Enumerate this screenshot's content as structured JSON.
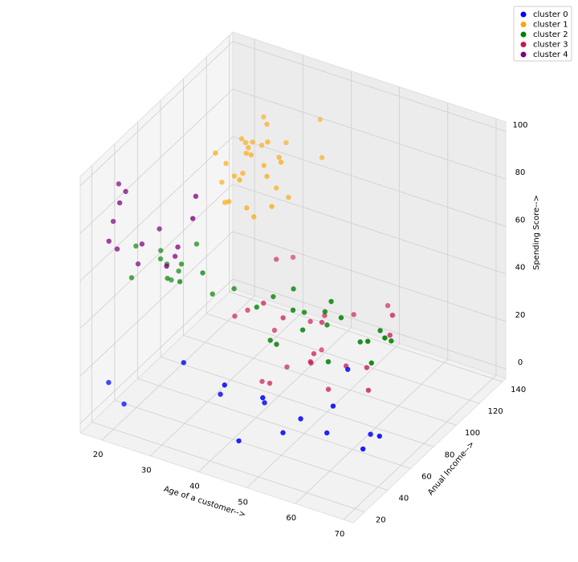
{
  "chart_data": {
    "type": "scatter3d",
    "xlabel": "Age of a customer-->",
    "ylabel": "Anual Income-->",
    "zlabel": "Spending Score-->",
    "xlim": [
      15.5,
      72
    ],
    "ylim": [
      10,
      143
    ],
    "zlim": [
      -4,
      104
    ],
    "xticks": [
      20,
      30,
      40,
      50,
      60,
      70
    ],
    "yticks": [
      20,
      40,
      60,
      80,
      100,
      120,
      140
    ],
    "zticks": [
      0,
      20,
      40,
      60,
      80,
      100
    ],
    "grid": true,
    "legend": "upper right",
    "series": [
      {
        "name": "cluster 0",
        "color": "#0000ff",
        "x": [
          19,
          21,
          35,
          45,
          40,
          52,
          47,
          60,
          58,
          65,
          67,
          49,
          43,
          54,
          59,
          63
        ],
        "y": [
          20,
          25,
          18,
          24,
          29,
          33,
          38,
          43,
          46,
          48,
          54,
          28,
          20,
          40,
          60,
          63
        ],
        "z": [
          15,
          5,
          35,
          6,
          20,
          10,
          17,
          22,
          8,
          5,
          9,
          25,
          30,
          14,
          29,
          3
        ]
      },
      {
        "name": "cluster 1",
        "color": "#ffa500",
        "x": [
          32,
          29,
          35,
          36,
          30,
          33,
          38,
          31,
          34,
          27,
          39,
          32,
          35,
          30,
          36,
          28,
          33,
          37,
          31,
          34,
          29,
          32,
          38,
          35,
          30,
          33,
          36,
          31,
          34,
          39
        ],
        "y": [
          70,
          71,
          73,
          75,
          76,
          78,
          78,
          79,
          81,
          85,
          86,
          87,
          88,
          93,
          97,
          98,
          99,
          101,
          103,
          103,
          113,
          120,
          126,
          137,
          75,
          81,
          87,
          95,
          71,
          78
        ],
        "z": [
          77,
          95,
          75,
          71,
          89,
          86,
          88,
          83,
          93,
          75,
          91,
          92,
          86,
          90,
          86,
          88,
          97,
          68,
          85,
          69,
          91,
          79,
          74,
          83,
          73,
          93,
          97,
          90,
          87,
          76
        ]
      },
      {
        "name": "cluster 2",
        "color": "#008000",
        "x": [
          18,
          19,
          20,
          21,
          22,
          23,
          24,
          25,
          26,
          27,
          29,
          31,
          33,
          35,
          43,
          45,
          47,
          48,
          49,
          50,
          51,
          53,
          54,
          55,
          57,
          59,
          60,
          63,
          65,
          66,
          67,
          68,
          70
        ],
        "y": [
          48,
          40,
          61,
          57,
          62,
          54,
          60,
          46,
          54,
          63,
          40,
          60,
          43,
          62,
          48,
          54,
          43,
          59,
          40,
          60,
          46,
          46,
          63,
          57,
          54,
          43,
          50,
          54,
          63,
          48,
          47,
          60,
          46
        ],
        "z": [
          59,
          50,
          49,
          55,
          41,
          52,
          47,
          51,
          54,
          59,
          55,
          42,
          60,
          46,
          50,
          53,
          41,
          56,
          42,
          47,
          55,
          48,
          43,
          52,
          59,
          40,
          56,
          46,
          48,
          51,
          43,
          47,
          56
        ]
      },
      {
        "name": "cluster 3",
        "color": "#c8174f",
        "x": [
          43,
          40,
          47,
          37,
          34,
          59,
          47,
          45,
          40,
          52,
          47,
          36,
          42,
          58,
          44,
          34,
          41,
          46,
          32,
          49,
          33,
          38,
          59,
          50,
          57
        ],
        "y": [
          71,
          72,
          78,
          78,
          78,
          78,
          81,
          87,
          87,
          88,
          88,
          93,
          99,
          101,
          103,
          103,
          113,
          120,
          126,
          137,
          71,
          75,
          99,
          81,
          85
        ],
        "z": [
          35,
          5,
          16,
          1,
          29,
          12,
          18,
          10,
          5,
          13,
          28,
          15,
          20,
          24,
          22,
          39,
          1,
          16,
          28,
          14,
          29,
          36,
          34,
          5,
          17
        ]
      },
      {
        "name": "cluster 4",
        "color": "#800080",
        "x": [
          20,
          22,
          23,
          21,
          31,
          19,
          35,
          24,
          18,
          22,
          30,
          33,
          25,
          28
        ],
        "y": [
          16,
          17,
          18,
          19,
          20,
          24,
          26,
          28,
          33,
          33,
          34,
          37,
          39,
          40
        ],
        "z": [
          77,
          94,
          99,
          73,
          72,
          81,
          92,
          73,
          92,
          61,
          73,
          95,
          75,
          65
        ]
      }
    ]
  }
}
